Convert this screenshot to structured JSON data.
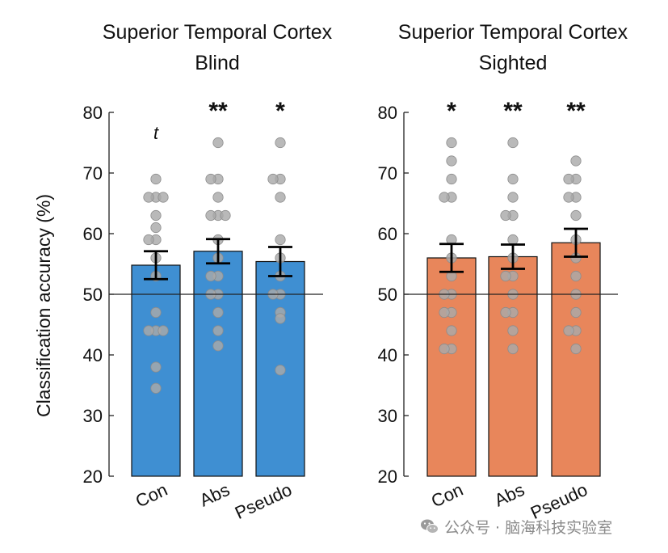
{
  "chart_data": [
    {
      "type": "bar",
      "title": "Superior Temporal Cortex",
      "subtitle": "Blind",
      "ylabel": "Classification accuracy (%)",
      "xlabel": "",
      "ylim": [
        20,
        80
      ],
      "yticks": [
        20,
        30,
        40,
        50,
        60,
        70,
        80
      ],
      "chance_level": 50,
      "bar_color": "#3f8fd2",
      "categories": [
        "Con",
        "Abs",
        "Pseudo"
      ],
      "values": [
        54.8,
        57.1,
        55.4
      ],
      "sem": [
        2.3,
        2.0,
        2.4
      ],
      "significance": [
        "t",
        "**",
        "*"
      ],
      "points": [
        [
          69,
          66,
          66,
          66,
          63,
          61,
          59,
          59,
          56,
          53,
          47,
          44,
          44,
          44,
          38,
          34.5
        ],
        [
          75,
          69,
          69,
          66,
          63,
          63,
          63,
          59,
          56,
          53,
          53,
          50,
          50,
          47,
          44,
          41.5
        ],
        [
          75,
          69,
          69,
          66,
          59,
          56,
          53,
          50,
          50,
          47,
          46,
          37.5
        ]
      ]
    },
    {
      "type": "bar",
      "title": "Superior Temporal Cortex",
      "subtitle": "Sighted",
      "ylabel": "",
      "xlabel": "",
      "ylim": [
        20,
        80
      ],
      "yticks": [
        20,
        30,
        40,
        50,
        60,
        70,
        80
      ],
      "chance_level": 50,
      "bar_color": "#e8865b",
      "categories": [
        "Con",
        "Abs",
        "Pseudo"
      ],
      "values": [
        56.0,
        56.2,
        58.5
      ],
      "sem": [
        2.3,
        2.0,
        2.3
      ],
      "significance": [
        "*",
        "**",
        "**"
      ],
      "points": [
        [
          75,
          72,
          69,
          66,
          66,
          59,
          56,
          53,
          50,
          50,
          47,
          47,
          44,
          41,
          41
        ],
        [
          75,
          69,
          66,
          63,
          63,
          59,
          56,
          53,
          53,
          50,
          47,
          47,
          44,
          41
        ],
        [
          72,
          69,
          69,
          66,
          66,
          63,
          59,
          56,
          53,
          50,
          47,
          44,
          44,
          41
        ]
      ]
    }
  ],
  "watermark": {
    "text": "公众号 · 脑海科技实验室",
    "icon": "wechat-icon"
  }
}
